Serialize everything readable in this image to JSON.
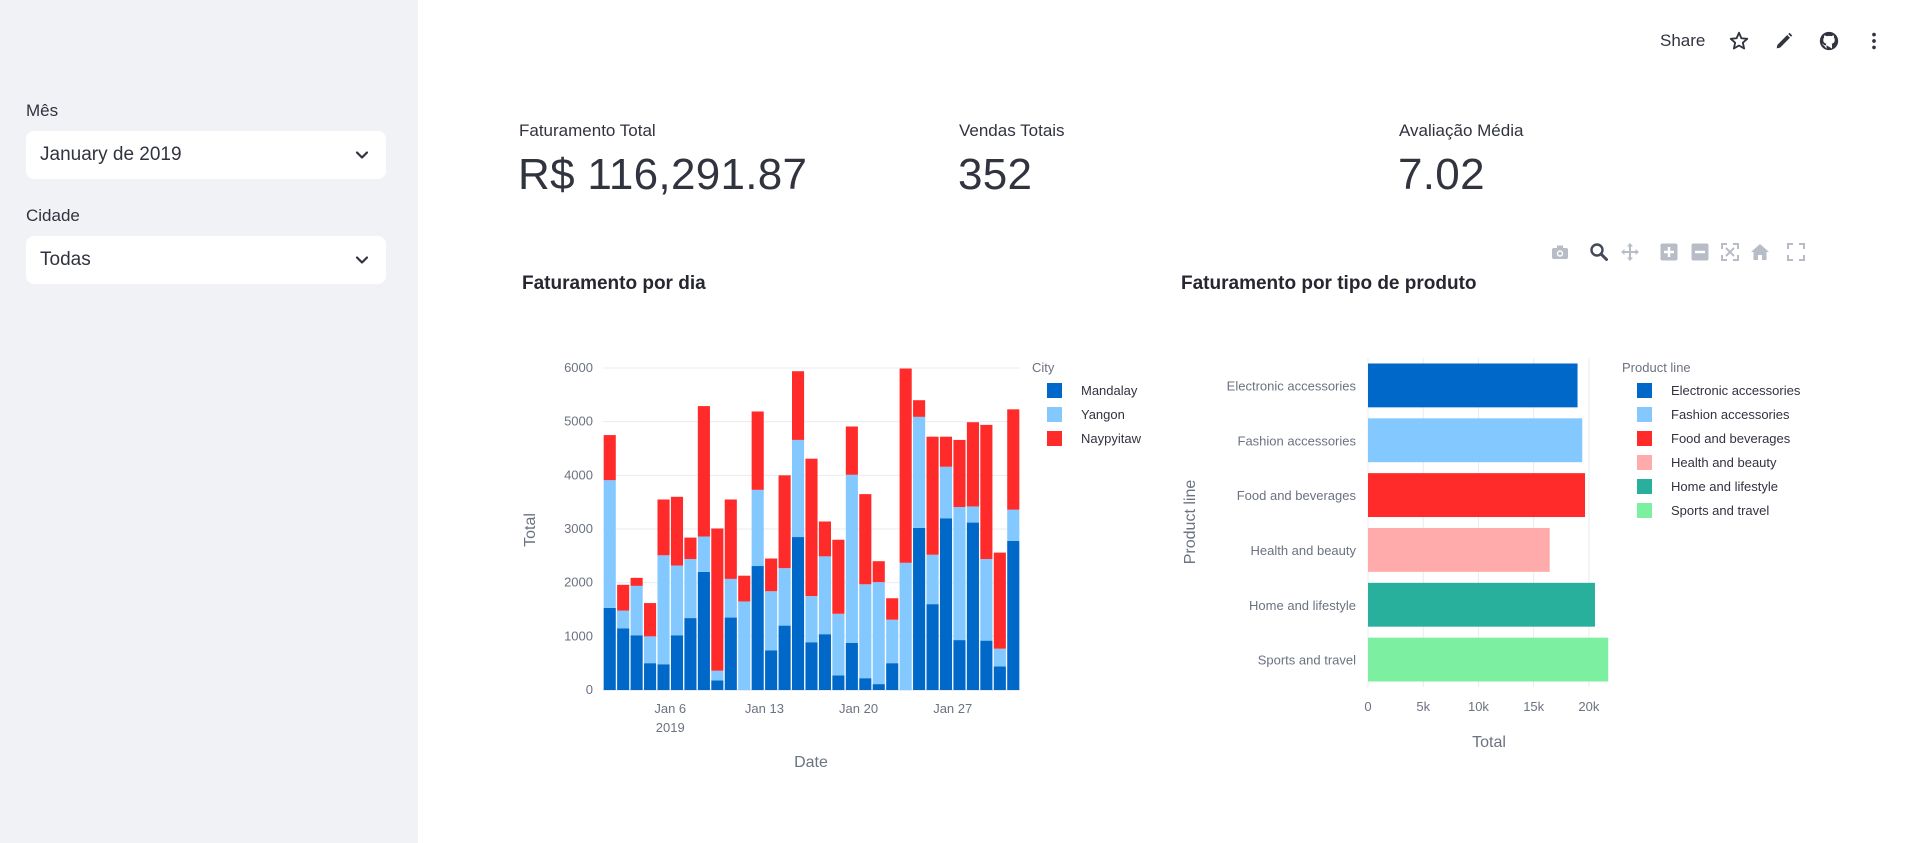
{
  "sidebar": {
    "month_label": "Mês",
    "month_value": "January de 2019",
    "city_label": "Cidade",
    "city_value": "Todas"
  },
  "toolbar": {
    "share_label": "Share",
    "icons": [
      "star-icon",
      "edit-icon",
      "github-icon",
      "more-vert-icon"
    ]
  },
  "metrics": [
    {
      "label": "Faturamento Total",
      "value": "R$ 116,291.87"
    },
    {
      "label": "Vendas Totais",
      "value": "352"
    },
    {
      "label": "Avaliação Média",
      "value": "7.02"
    }
  ],
  "modebar": [
    "camera-icon",
    "zoom-icon",
    "pan-icon",
    "zoom-in-icon",
    "zoom-out-icon",
    "autoscale-icon",
    "reset-axes-icon",
    "fullscreen-icon"
  ],
  "charts": {
    "daily": {
      "title": "Faturamento por dia",
      "xlabel": "Date",
      "ylabel": "Total",
      "legend_title": "City"
    },
    "product": {
      "title": "Faturamento por tipo de produto",
      "xlabel": "Total",
      "ylabel": "Product line",
      "legend_title": "Product line"
    }
  },
  "chart_data": [
    {
      "type": "bar",
      "stacked": true,
      "title": "Faturamento por dia",
      "xlabel": "Date",
      "ylabel": "Total",
      "ylim": [
        0,
        6000
      ],
      "yticks": [
        0,
        1000,
        2000,
        3000,
        4000,
        5000,
        6000
      ],
      "x_tick_labels": [
        "Jan 6",
        "Jan 13",
        "Jan 20",
        "Jan 27"
      ],
      "x_tick_days": [
        6,
        13,
        20,
        27
      ],
      "x_year_label": "2019",
      "legend_title": "City",
      "categories": [
        1,
        2,
        3,
        4,
        5,
        6,
        7,
        8,
        9,
        10,
        11,
        12,
        13,
        14,
        15,
        16,
        17,
        18,
        19,
        20,
        21,
        22,
        23,
        24,
        25,
        26,
        27,
        28,
        29,
        30,
        31
      ],
      "series": [
        {
          "name": "Mandalay",
          "color": "#0068c9",
          "values": [
            1530,
            1150,
            1020,
            500,
            480,
            1020,
            1340,
            2200,
            180,
            1350,
            0,
            2310,
            740,
            1200,
            2850,
            890,
            1040,
            270,
            880,
            220,
            110,
            500,
            0,
            3020,
            1600,
            3200,
            930,
            3120,
            920,
            440,
            2780
          ]
        },
        {
          "name": "Yangon",
          "color": "#83c9ff",
          "values": [
            2380,
            330,
            920,
            500,
            2030,
            1300,
            1100,
            660,
            180,
            720,
            1650,
            1420,
            1100,
            1070,
            1810,
            860,
            1450,
            1150,
            3130,
            1750,
            1900,
            810,
            2370,
            2070,
            920,
            960,
            2480,
            300,
            1520,
            330,
            580
          ]
        },
        {
          "name": "Naypyitaw",
          "color": "#ff2b2b",
          "values": [
            840,
            480,
            150,
            620,
            1040,
            1280,
            400,
            2430,
            2650,
            1480,
            480,
            1460,
            610,
            1730,
            1280,
            2560,
            650,
            1380,
            900,
            1680,
            390,
            400,
            3620,
            310,
            2200,
            560,
            1250,
            1570,
            2500,
            1790,
            1870
          ]
        }
      ]
    },
    {
      "type": "bar",
      "orientation": "horizontal",
      "title": "Faturamento por tipo de produto",
      "xlabel": "Total",
      "ylabel": "Product line",
      "xlim": [
        0,
        22000
      ],
      "xticks": [
        0,
        5000,
        10000,
        15000,
        20000
      ],
      "xtick_labels": [
        "0",
        "5k",
        "10k",
        "15k",
        "20k"
      ],
      "legend_title": "Product line",
      "categories": [
        "Electronic accessories",
        "Fashion accessories",
        "Food and beverages",
        "Health and beauty",
        "Home and lifestyle",
        "Sports and travel"
      ],
      "values": [
        18970,
        19400,
        19650,
        16450,
        20550,
        21750
      ],
      "colors": [
        "#0068c9",
        "#83c9ff",
        "#ff2b2b",
        "#ffabab",
        "#29b09d",
        "#7defa1"
      ]
    }
  ]
}
